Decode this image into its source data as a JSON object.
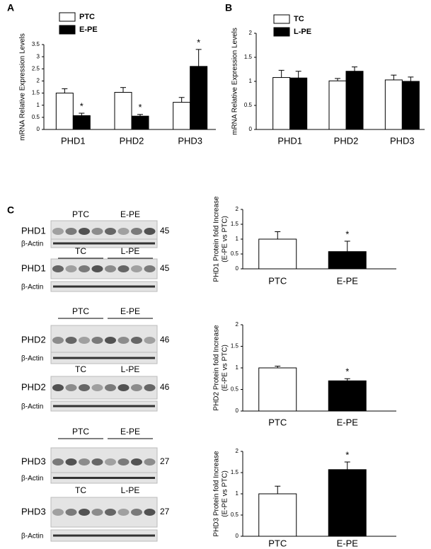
{
  "chart_data": [
    {
      "type": "bar",
      "panel": "A",
      "ylabel": [
        "mRNA Relative Expression Levels"
      ],
      "categories": [
        "PHD1",
        "PHD2",
        "PHD3"
      ],
      "series": [
        {
          "name": "PTC",
          "color": "#ffffff",
          "values": [
            1.5,
            1.53,
            1.12
          ],
          "errors": [
            0.18,
            0.2,
            0.2
          ]
        },
        {
          "name": "E-PE",
          "color": "#000000",
          "values": [
            0.57,
            0.55,
            2.6
          ],
          "errors": [
            0.1,
            0.07,
            0.7
          ],
          "annotations": [
            "*",
            "*",
            "*"
          ]
        }
      ],
      "ylim": [
        0,
        3.5
      ],
      "yticks": [
        0,
        0.5,
        1,
        1.5,
        2,
        2.5,
        3,
        3.5
      ]
    },
    {
      "type": "bar",
      "panel": "B",
      "ylabel": [
        "mRNA Relative Expression Levels"
      ],
      "categories": [
        "PHD1",
        "PHD2",
        "PHD3"
      ],
      "series": [
        {
          "name": "TC",
          "color": "#ffffff",
          "values": [
            1.08,
            1.01,
            1.03
          ],
          "errors": [
            0.15,
            0.05,
            0.1
          ]
        },
        {
          "name": "L-PE",
          "color": "#000000",
          "values": [
            1.07,
            1.21,
            1.0
          ],
          "errors": [
            0.14,
            0.09,
            0.09
          ]
        }
      ],
      "ylim": [
        0,
        2
      ],
      "yticks": [
        0,
        0.5,
        1,
        1.5,
        2
      ]
    },
    {
      "type": "bar",
      "ylabel": [
        "PHD1 Protein fold Increase",
        "(E-PE vs PTC)"
      ],
      "categories": [
        "PTC",
        "E-PE"
      ],
      "values": [
        1,
        0.58
      ],
      "errors": [
        0.25,
        0.35
      ],
      "colors": [
        "#ffffff",
        "#000000"
      ],
      "annotations": [
        null,
        "*"
      ],
      "ylim": [
        0,
        2
      ],
      "yticks": [
        0,
        0.5,
        1,
        1.5,
        2
      ]
    },
    {
      "type": "bar",
      "ylabel": [
        "PHD2 Protein fold Increase",
        "(E-PE vs PTC)"
      ],
      "categories": [
        "PTC",
        "E-PE"
      ],
      "values": [
        1,
        0.7
      ],
      "errors": [
        0.04,
        0.05
      ],
      "colors": [
        "#ffffff",
        "#000000"
      ],
      "annotations": [
        null,
        "*"
      ],
      "ylim": [
        0,
        2
      ],
      "yticks": [
        0,
        0.5,
        1,
        1.5,
        2
      ]
    },
    {
      "type": "bar",
      "ylabel": [
        "PHD3 Protein fold Increase",
        "(E-PE vs PTC)"
      ],
      "categories": [
        "PTC",
        "E-PE"
      ],
      "values": [
        1,
        1.57
      ],
      "errors": [
        0.18,
        0.18
      ],
      "colors": [
        "#ffffff",
        "#000000"
      ],
      "annotations": [
        null,
        "*"
      ],
      "ylim": [
        0,
        2
      ],
      "yticks": [
        0,
        0.5,
        1,
        1.5,
        2
      ]
    }
  ],
  "panel_c": "C",
  "blots": [
    {
      "header": [
        "PTC",
        "E-PE"
      ],
      "protein": "PHD1",
      "size": "45",
      "actin": "β-Actin"
    },
    {
      "header": [
        "TC",
        "L-PE"
      ],
      "protein": "PHD1",
      "size": "45",
      "actin": "β-Actin"
    },
    {
      "header": [
        "PTC",
        "E-PE"
      ],
      "protein": "PHD2",
      "size": "46",
      "actin": "β-Actin"
    },
    {
      "header": [
        "TC",
        "L-PE"
      ],
      "protein": "PHD2",
      "size": "46",
      "actin": "β-Actin"
    },
    {
      "header": [
        "PTC",
        "E-PE"
      ],
      "protein": "PHD3",
      "size": "27",
      "actin": "β-Actin"
    },
    {
      "header": [
        "TC",
        "L-PE"
      ],
      "protein": "PHD3",
      "size": "27",
      "actin": "β-Actin"
    }
  ]
}
